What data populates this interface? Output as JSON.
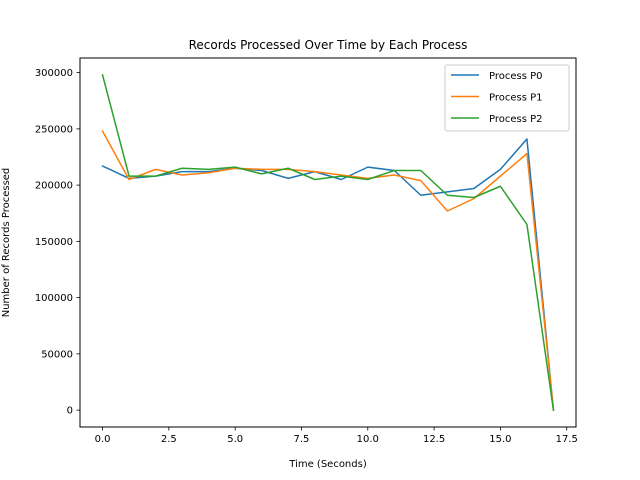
{
  "chart_data": {
    "type": "line",
    "title": "Records Processed Over Time by Each Process",
    "xlabel": "Time (Seconds)",
    "ylabel": "Number of Records Processed",
    "xlim": [
      -0.85,
      17.85
    ],
    "ylim": [
      -15000,
      313000
    ],
    "xticks": [
      0.0,
      2.5,
      5.0,
      7.5,
      10.0,
      12.5,
      15.0,
      17.5
    ],
    "xtick_labels": [
      "0.0",
      "2.5",
      "5.0",
      "7.5",
      "10.0",
      "12.5",
      "15.0",
      "17.5"
    ],
    "yticks": [
      0,
      50000,
      100000,
      150000,
      200000,
      250000,
      300000
    ],
    "ytick_labels": [
      "0",
      "50000",
      "100000",
      "150000",
      "200000",
      "250000",
      "300000"
    ],
    "grid": false,
    "legend_position": "top-right",
    "x": [
      0,
      1,
      2,
      3,
      4,
      5,
      6,
      7,
      8,
      9,
      10,
      11,
      12,
      13,
      14,
      15,
      16,
      17
    ],
    "series": [
      {
        "name": "Process P0",
        "color": "#1f77b4",
        "values": [
          217000,
          206000,
          208000,
          212000,
          212000,
          215000,
          213000,
          206000,
          212000,
          205000,
          216000,
          213000,
          191000,
          194000,
          197000,
          214000,
          241000,
          0
        ]
      },
      {
        "name": "Process P1",
        "color": "#ff7f0e",
        "values": [
          248000,
          205000,
          214000,
          209000,
          211000,
          215000,
          214000,
          214000,
          212000,
          209000,
          206000,
          209000,
          204000,
          177000,
          188000,
          208000,
          228000,
          0
        ]
      },
      {
        "name": "Process P2",
        "color": "#2ca02c",
        "values": [
          298000,
          208000,
          208000,
          215000,
          214000,
          216000,
          210000,
          215000,
          205000,
          208000,
          205000,
          213000,
          213000,
          191000,
          189000,
          199000,
          165000,
          0
        ]
      }
    ]
  }
}
